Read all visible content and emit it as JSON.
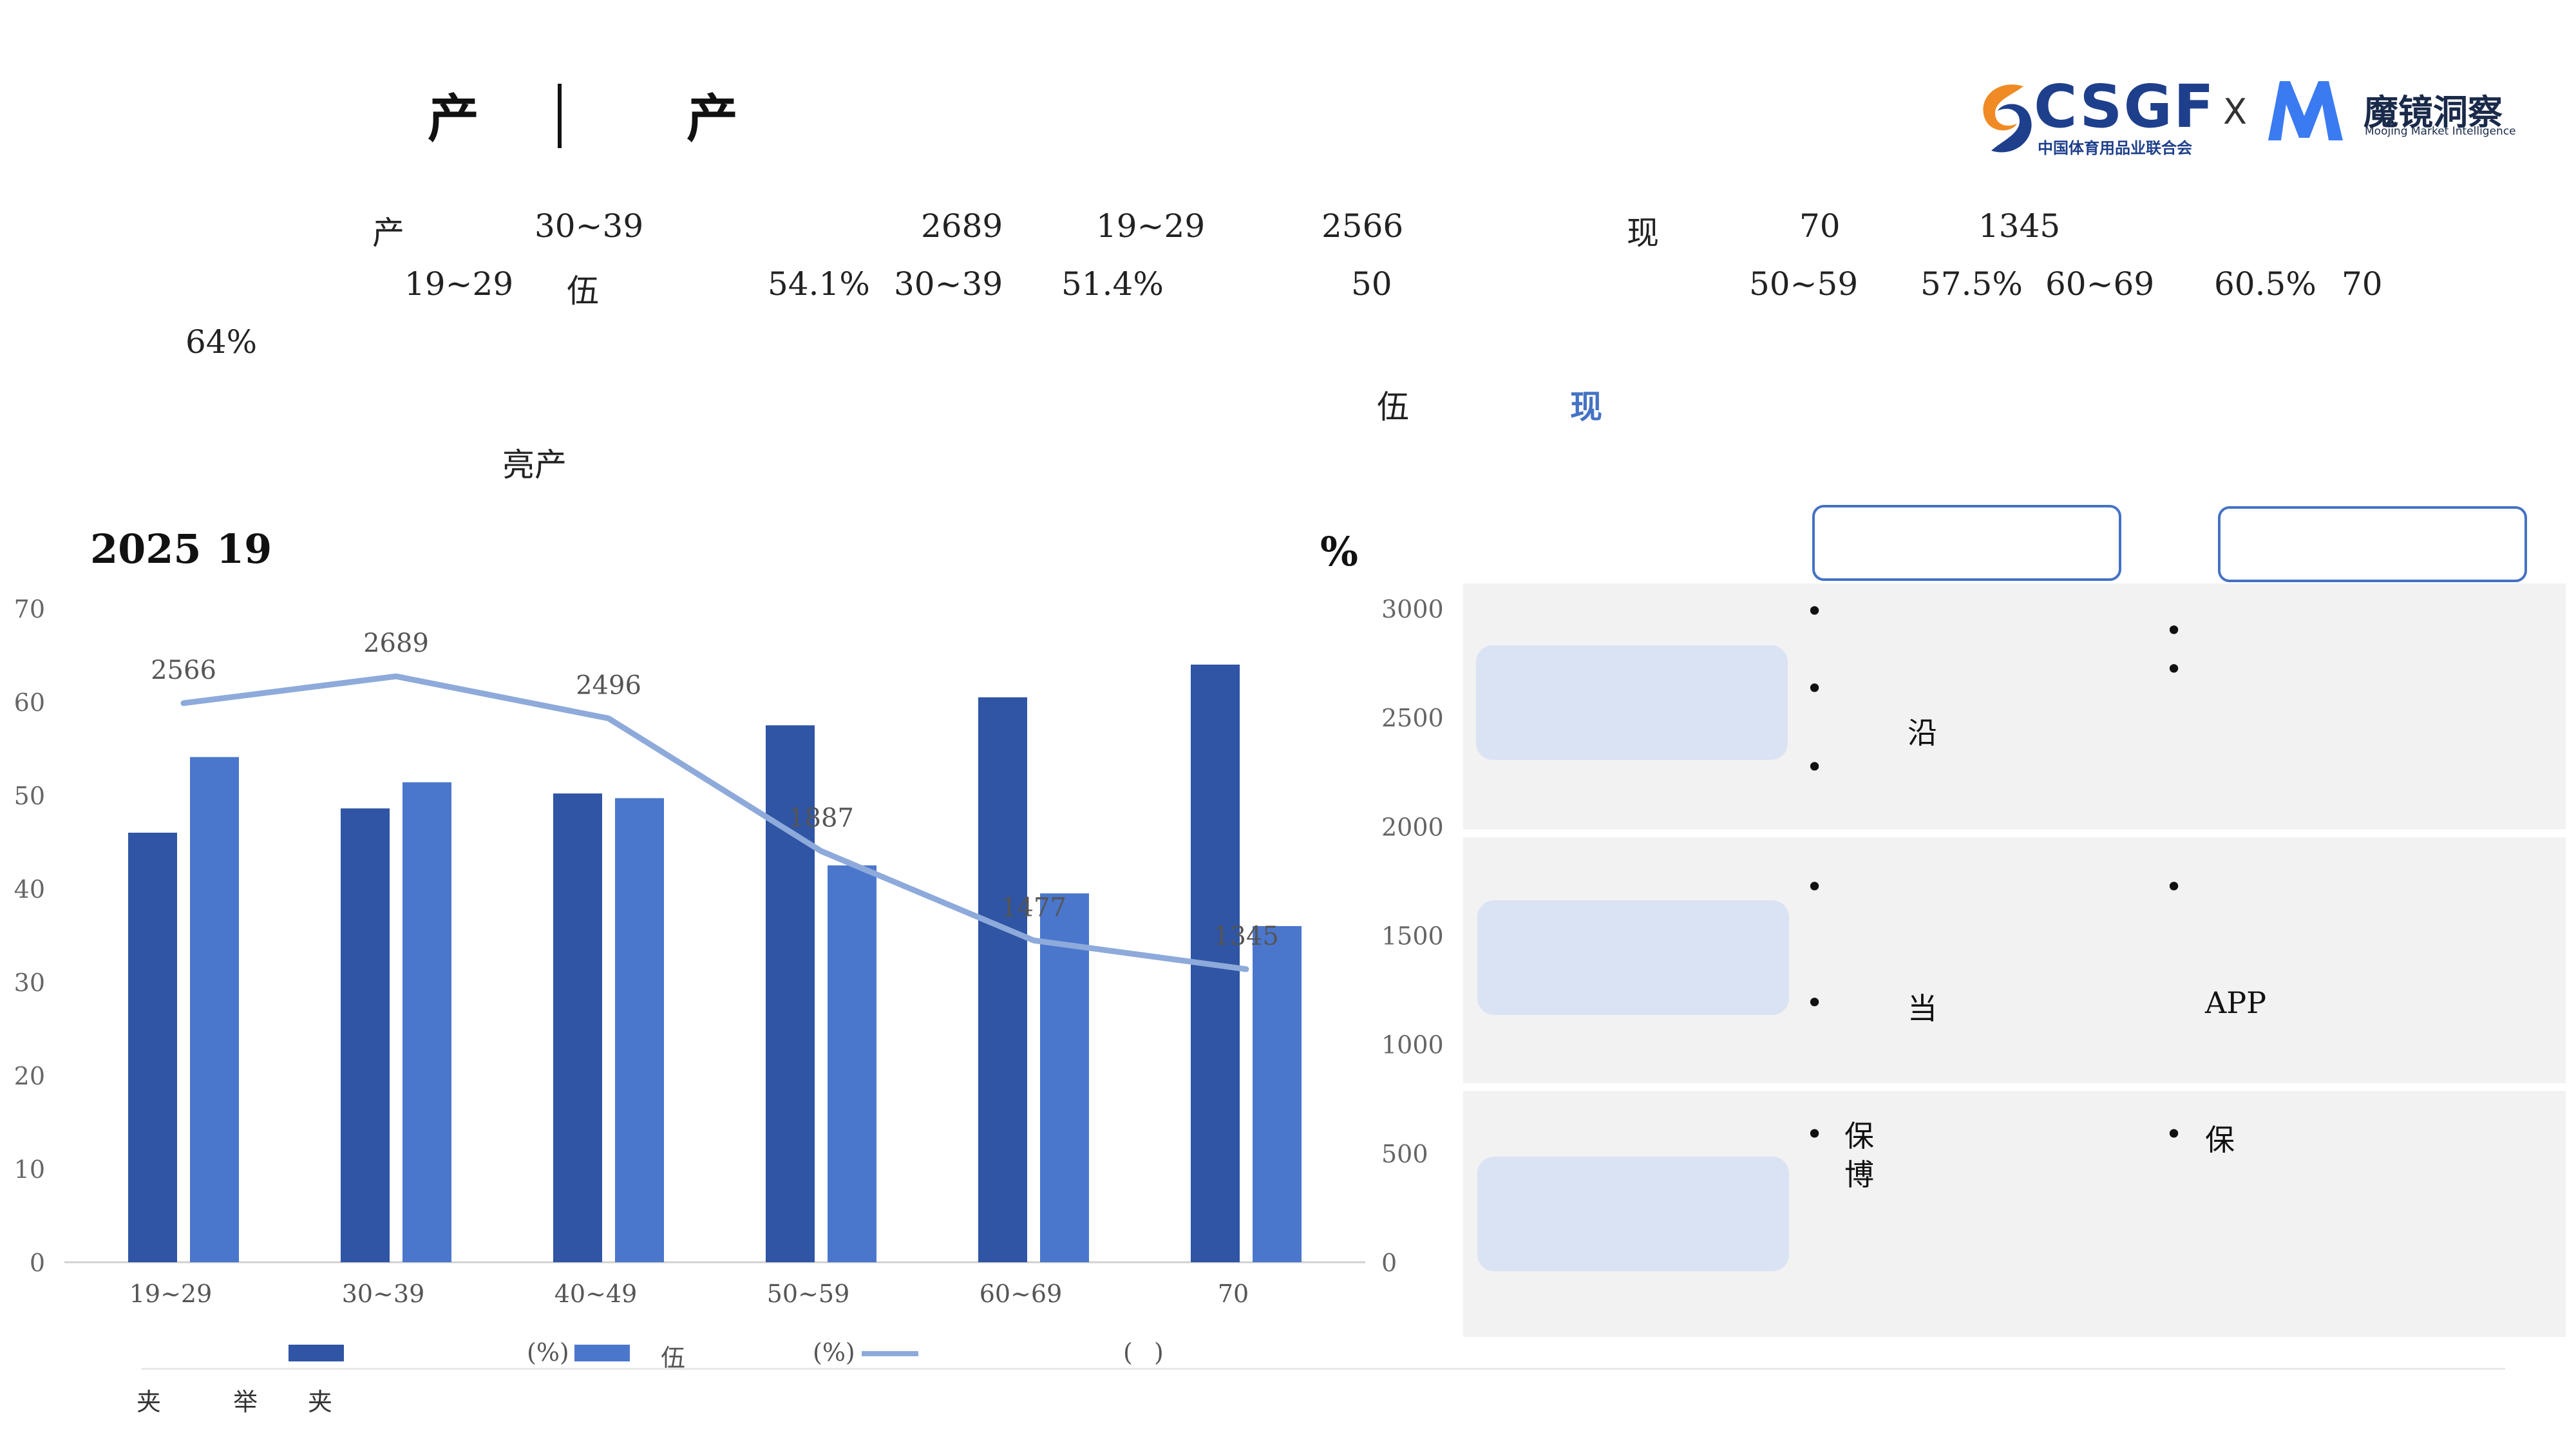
{
  "header": {
    "title_left": "产",
    "title_right": "产"
  },
  "logos": {
    "csgf_text": "CSGF",
    "csgf_sub": "中国体育用品业联合会",
    "x_mark": "X",
    "moojing_cn": "魔镜洞察",
    "moojing_en": "Moojing Market Intelligence",
    "colors": {
      "csgf_orange": "#f08a24",
      "csgf_blue": "#1e3f8c",
      "moojing_blue": "#3a7bf2"
    }
  },
  "summary": {
    "line1": [
      "产",
      "30~39",
      "2689",
      "19~29",
      "2566",
      "现",
      "70",
      "1345"
    ],
    "line2": [
      "19~29",
      "伍",
      "54.1%",
      "30~39",
      "51.4%",
      "50",
      "50~59",
      "57.5%",
      "60~69",
      "60.5%",
      "70"
    ],
    "line3": [
      "64%"
    ],
    "line4": [
      "伍",
      "现"
    ],
    "line5": [
      "亮产"
    ]
  },
  "chart_heading": {
    "left": "2025",
    "left2": "19",
    "right": "%"
  },
  "chart_data": {
    "type": "bar",
    "categories": [
      "19~29",
      "30~39",
      "40~49",
      "50~59",
      "60~69",
      "70"
    ],
    "series": [
      {
        "values": [
          46,
          48.6,
          50.2,
          57.5,
          60.5,
          64
        ],
        "color": "#2f55a4",
        "axis": "left"
      },
      {
        "values": [
          54.1,
          51.4,
          49.7,
          42.5,
          39.5,
          36
        ],
        "color": "#4a77cc",
        "axis": "left"
      },
      {
        "type": "line",
        "values": [
          2566,
          2689,
          2496,
          1887,
          1477,
          1345
        ],
        "color": "#8eaadb",
        "axis": "right"
      }
    ],
    "left_axis": {
      "ylim": [
        0,
        70
      ],
      "ticks": [
        "0",
        "10",
        "20",
        "30",
        "40",
        "50",
        "60",
        "70"
      ]
    },
    "right_axis": {
      "ylim": [
        0,
        3000
      ],
      "ticks": [
        "0",
        "500",
        "1000",
        "1500",
        "2000",
        "2500",
        "3000"
      ]
    },
    "line_labels": [
      "2566",
      "2689",
      "2496",
      "1887",
      "1477",
      "1345"
    ],
    "legend": [
      "(%)",
      "伍",
      "(%)",
      "(",
      ")"
    ],
    "legend_position": "bottom"
  },
  "source": [
    "夹",
    "举",
    "夹"
  ],
  "panel": {
    "rows": [
      {
        "left_bullets": [
          "",
          "",
          "沿",
          ""
        ],
        "right_bullets": [
          "",
          ""
        ]
      },
      {
        "left_bullets": [
          "",
          "当"
        ],
        "right_bullets": [
          "",
          "APP"
        ]
      },
      {
        "left_bullets": [
          "保\n博"
        ],
        "right_bullets": [
          "保"
        ]
      }
    ],
    "colors": {
      "bg": "#f2f2f2",
      "pill": "#dae3f3",
      "border": "#4472c4"
    }
  }
}
